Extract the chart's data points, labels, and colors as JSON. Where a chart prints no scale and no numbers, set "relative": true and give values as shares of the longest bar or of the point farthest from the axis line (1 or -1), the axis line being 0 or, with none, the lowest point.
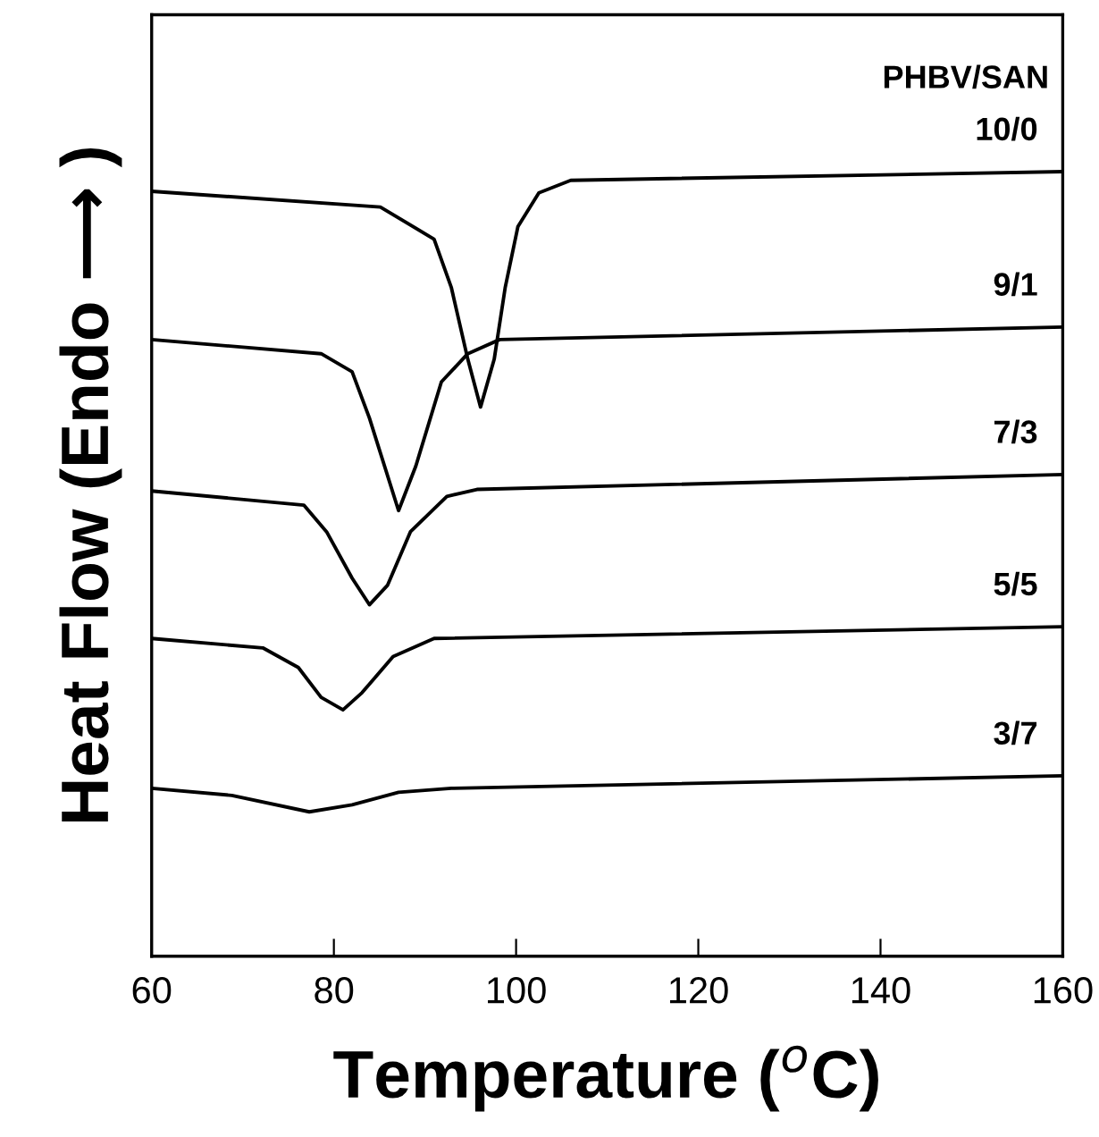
{
  "chart_data": {
    "type": "line",
    "relative": true,
    "xlabel": "Temperature ($^{o}$C)",
    "ylabel": "Heat Flow (Endo ⟶ )",
    "xlim": [
      60,
      160
    ],
    "xticks": [
      60,
      80,
      100,
      120,
      140,
      160
    ],
    "tick_labels": "x",
    "grid": false,
    "legend": false,
    "marker": "none",
    "line_style": "solid",
    "annotations": [
      "PHBV/SAN"
    ],
    "series": [
      {
        "name": "10/0",
        "color": "#000000",
        "x": [
          60,
          85.1,
          91.0,
          92.9,
          94.7,
          96.1,
          97.6,
          98.8,
          100.2,
          102.5,
          106,
          160
        ],
        "values": [
          0.975,
          0.955,
          0.914,
          0.852,
          0.761,
          0.7,
          0.761,
          0.852,
          0.93,
          0.973,
          0.989,
          1.0
        ]
      },
      {
        "name": "9/1",
        "color": "#000000",
        "x": [
          60,
          78.6,
          82,
          83.9,
          87.1,
          89.0,
          91.8,
          94.7,
          98.2,
          160
        ],
        "values": [
          0.786,
          0.768,
          0.745,
          0.686,
          0.568,
          0.625,
          0.732,
          0.768,
          0.786,
          0.802
        ]
      },
      {
        "name": "7/3",
        "color": "#000000",
        "x": [
          60,
          76.7,
          79.2,
          82,
          83.9,
          85.9,
          88.4,
          92.4,
          95.7,
          160
        ],
        "values": [
          0.593,
          0.575,
          0.541,
          0.482,
          0.448,
          0.473,
          0.541,
          0.586,
          0.595,
          0.614
        ]
      },
      {
        "name": "5/5",
        "color": "#000000",
        "x": [
          60,
          72.2,
          76.1,
          78.6,
          81,
          83.1,
          86.5,
          91,
          160
        ],
        "values": [
          0.405,
          0.393,
          0.368,
          0.33,
          0.314,
          0.336,
          0.382,
          0.405,
          0.42
        ]
      },
      {
        "name": "3/7",
        "color": "#000000",
        "x": [
          60,
          68.8,
          77.3,
          82,
          87.1,
          92.9,
          160
        ],
        "values": [
          0.214,
          0.205,
          0.184,
          0.193,
          0.209,
          0.214,
          0.23
        ]
      }
    ]
  }
}
